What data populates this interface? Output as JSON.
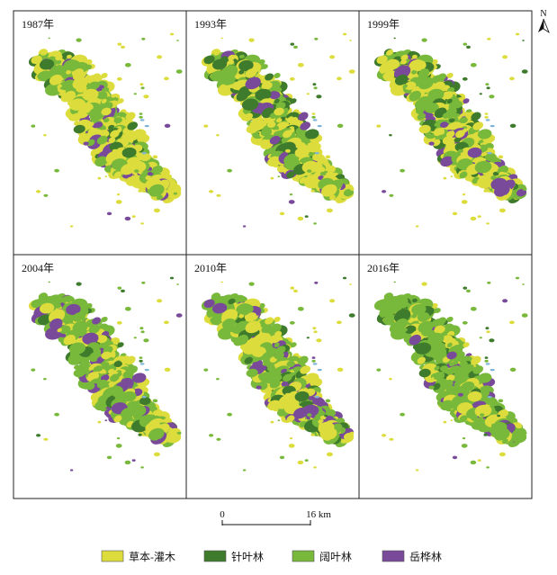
{
  "panels": [
    {
      "label": "1987年",
      "mix": {
        "herb": 0.55,
        "needle": 0.06,
        "broad": 0.32,
        "birch": 0.07
      }
    },
    {
      "label": "1993年",
      "mix": {
        "herb": 0.48,
        "needle": 0.16,
        "broad": 0.28,
        "birch": 0.08
      }
    },
    {
      "label": "1999年",
      "mix": {
        "herb": 0.44,
        "needle": 0.2,
        "broad": 0.26,
        "birch": 0.1
      }
    },
    {
      "label": "2004年",
      "mix": {
        "herb": 0.32,
        "needle": 0.04,
        "broad": 0.54,
        "birch": 0.1
      }
    },
    {
      "label": "2010年",
      "mix": {
        "herb": 0.34,
        "needle": 0.1,
        "broad": 0.46,
        "birch": 0.1
      }
    },
    {
      "label": "2016年",
      "mix": {
        "herb": 0.22,
        "needle": 0.08,
        "broad": 0.62,
        "birch": 0.08
      }
    }
  ],
  "legend": [
    {
      "key": "herb",
      "label": "草本-灌木",
      "color": "#dcdc3c"
    },
    {
      "key": "needle",
      "label": "针叶林",
      "color": "#3e7b2c"
    },
    {
      "key": "broad",
      "label": "阔叶林",
      "color": "#78b83a"
    },
    {
      "key": "birch",
      "label": "岳桦林",
      "color": "#7a4a9a"
    }
  ],
  "scale_bar": {
    "start_label": "0",
    "end_label": "16 km"
  },
  "north_arrow": {
    "label": "N",
    "icon": "north-arrow-icon"
  },
  "water_color": "#7fb5d8"
}
